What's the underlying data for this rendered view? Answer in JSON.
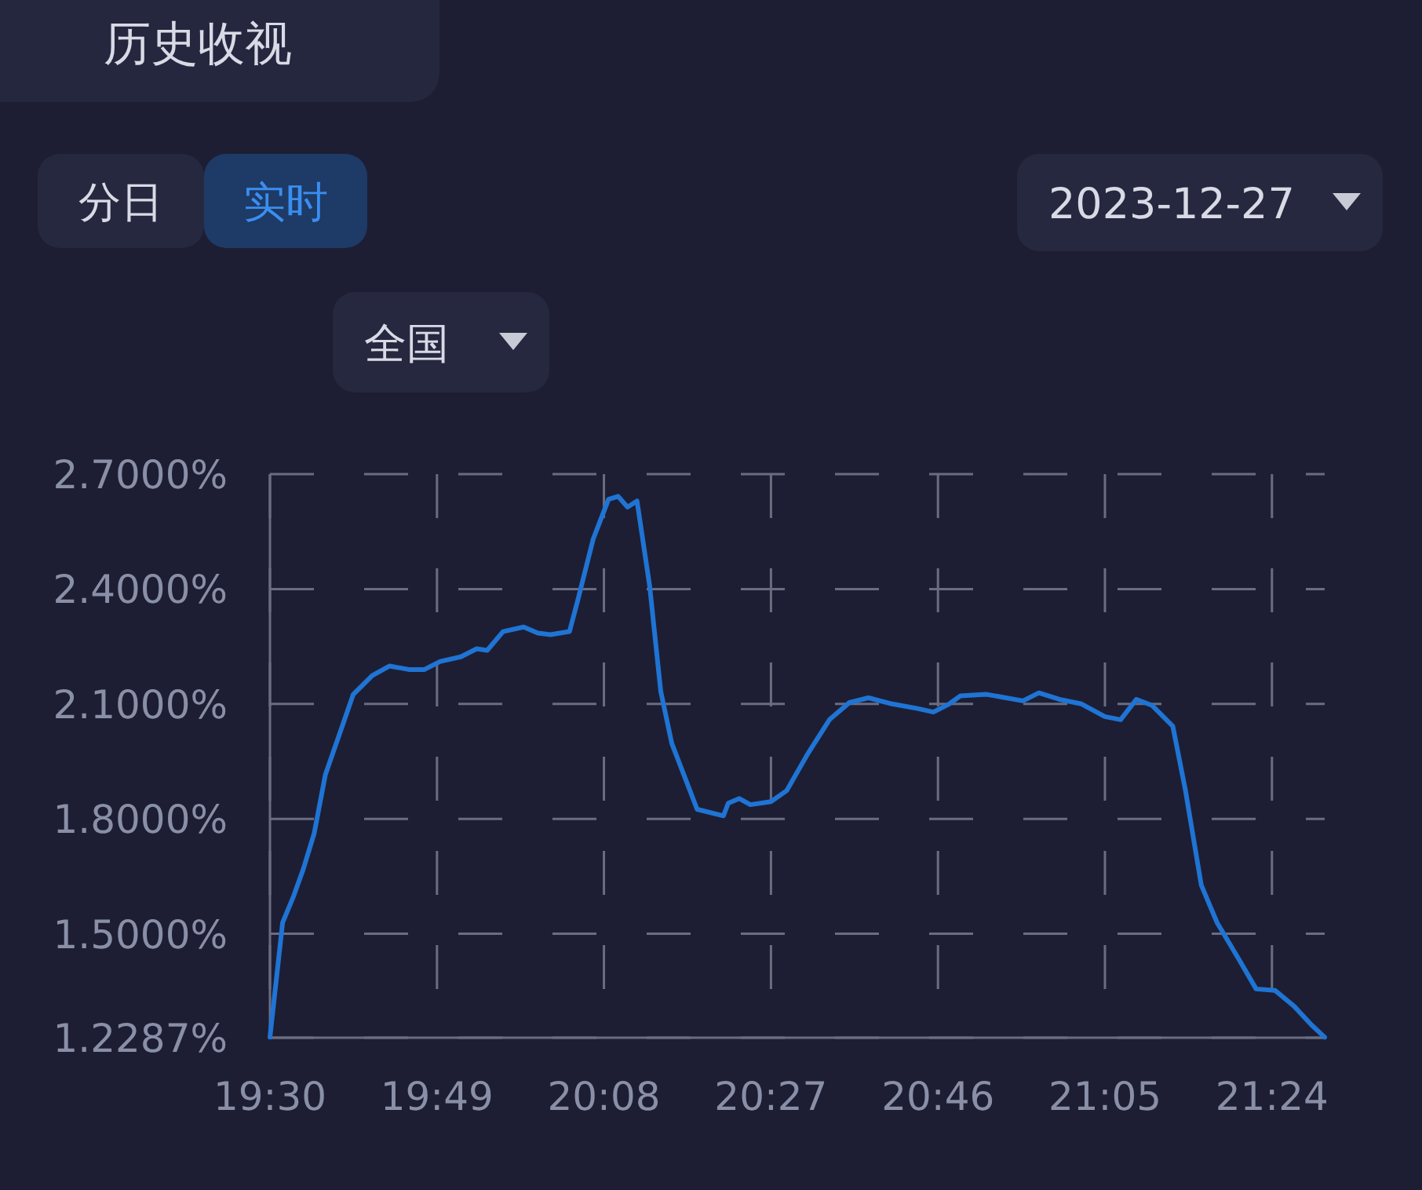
{
  "chart_data": {
    "type": "line",
    "title": "历史收视",
    "annotations": [
      "分日",
      "实时",
      "2023-12-27",
      "全国"
    ],
    "x": [
      19.5,
      19.524,
      19.545,
      19.563,
      19.584,
      19.605,
      19.629,
      19.658,
      19.694,
      19.727,
      19.763,
      19.793,
      19.823,
      19.862,
      19.892,
      19.912,
      19.942,
      19.981,
      20.008,
      20.032,
      20.068,
      20.083,
      20.113,
      20.142,
      20.16,
      20.178,
      20.196,
      20.22,
      20.241,
      20.262,
      20.31,
      20.36,
      20.369,
      20.39,
      20.411,
      20.45,
      20.48,
      20.519,
      20.561,
      20.599,
      20.635,
      20.68,
      20.728,
      20.758,
      20.788,
      20.809,
      20.859,
      20.928,
      20.958,
      20.997,
      21.039,
      21.083,
      21.113,
      21.143,
      21.173,
      21.212,
      21.236,
      21.266,
      21.296,
      21.337,
      21.37,
      21.406,
      21.442,
      21.475,
      21.5
    ],
    "series": [
      {
        "color": "#1f74d4",
        "values": [
          1.23,
          1.529,
          1.599,
          1.668,
          1.763,
          1.915,
          2.01,
          2.125,
          2.174,
          2.199,
          2.19,
          2.19,
          2.211,
          2.223,
          2.244,
          2.24,
          2.289,
          2.301,
          2.285,
          2.281,
          2.289,
          2.367,
          2.531,
          2.634,
          2.642,
          2.614,
          2.63,
          2.408,
          2.133,
          1.997,
          1.825,
          1.808,
          1.841,
          1.853,
          1.837,
          1.845,
          1.874,
          1.968,
          2.059,
          2.104,
          2.116,
          2.1,
          2.088,
          2.079,
          2.1,
          2.121,
          2.125,
          2.108,
          2.129,
          2.112,
          2.1,
          2.067,
          2.059,
          2.112,
          2.096,
          2.042,
          1.874,
          1.627,
          1.529,
          1.434,
          1.356,
          1.352,
          1.311,
          1.262,
          1.23
        ]
      }
    ],
    "xlim": [
      19.5,
      21.5
    ],
    "xticks": [
      {
        "value": 19.5,
        "label": "19:30"
      },
      {
        "value": 19.8167,
        "label": "19:49"
      },
      {
        "value": 20.1333,
        "label": "20:08"
      },
      {
        "value": 20.45,
        "label": "20:27"
      },
      {
        "value": 20.7667,
        "label": "20:46"
      },
      {
        "value": 21.0833,
        "label": "21:05"
      },
      {
        "value": 21.4,
        "label": "21:24"
      }
    ],
    "ylim": [
      1.2287,
      2.7
    ],
    "yticks": [
      {
        "value": 1.2287,
        "label": "1.2287%"
      },
      {
        "value": 1.5,
        "label": "1.5000%"
      },
      {
        "value": 1.8,
        "label": "1.8000%"
      },
      {
        "value": 2.1,
        "label": "2.1000%"
      },
      {
        "value": 2.4,
        "label": "2.4000%"
      },
      {
        "value": 2.7,
        "label": "2.7000%"
      }
    ],
    "grid": true
  }
}
